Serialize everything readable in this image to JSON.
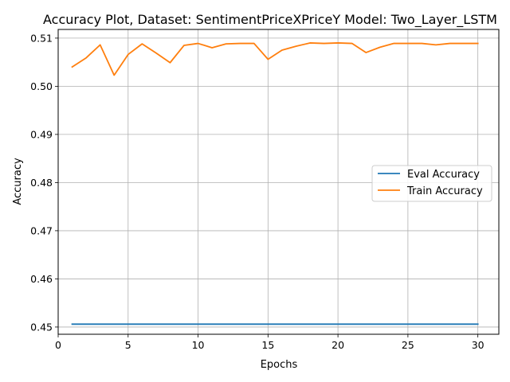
{
  "chart_data": {
    "type": "line",
    "title": "Accuracy Plot, Dataset: SentimentPriceXPriceY Model: Two_Layer_LSTM",
    "xlabel": "Epochs",
    "ylabel": "Accuracy",
    "xlim": [
      0,
      31.5
    ],
    "ylim": [
      0.4485,
      0.5118
    ],
    "xticks": [
      0,
      5,
      10,
      15,
      20,
      25,
      30
    ],
    "yticks": [
      0.45,
      0.46,
      0.47,
      0.48,
      0.49,
      0.5,
      0.51
    ],
    "ytick_labels": [
      "0.45",
      "0.46",
      "0.47",
      "0.48",
      "0.49",
      "0.50",
      "0.51"
    ],
    "grid": true,
    "legend_position": "center-right",
    "x": [
      1,
      2,
      3,
      4,
      5,
      6,
      7,
      8,
      9,
      10,
      11,
      12,
      13,
      14,
      15,
      16,
      17,
      18,
      19,
      20,
      21,
      22,
      23,
      24,
      25,
      26,
      27,
      28,
      29,
      30
    ],
    "series": [
      {
        "name": "Eval Accuracy",
        "color": "#1f77b4",
        "values": [
          0.4506,
          0.4506,
          0.4506,
          0.4506,
          0.4506,
          0.4506,
          0.4506,
          0.4506,
          0.4506,
          0.4506,
          0.4506,
          0.4506,
          0.4506,
          0.4506,
          0.4506,
          0.4506,
          0.4506,
          0.4506,
          0.4506,
          0.4506,
          0.4506,
          0.4506,
          0.4506,
          0.4506,
          0.4506,
          0.4506,
          0.4506,
          0.4506,
          0.4506,
          0.4506
        ]
      },
      {
        "name": "Train Accuracy",
        "color": "#ff7f0e",
        "values": [
          0.504,
          0.5059,
          0.5086,
          0.5023,
          0.5066,
          0.5088,
          0.5069,
          0.5049,
          0.5085,
          0.5089,
          0.508,
          0.5088,
          0.5089,
          0.5089,
          0.5056,
          0.5075,
          0.5083,
          0.509,
          0.5089,
          0.509,
          0.5089,
          0.507,
          0.5081,
          0.5089,
          0.5089,
          0.5089,
          0.5086,
          0.5089,
          0.5089,
          0.5089
        ]
      }
    ]
  }
}
